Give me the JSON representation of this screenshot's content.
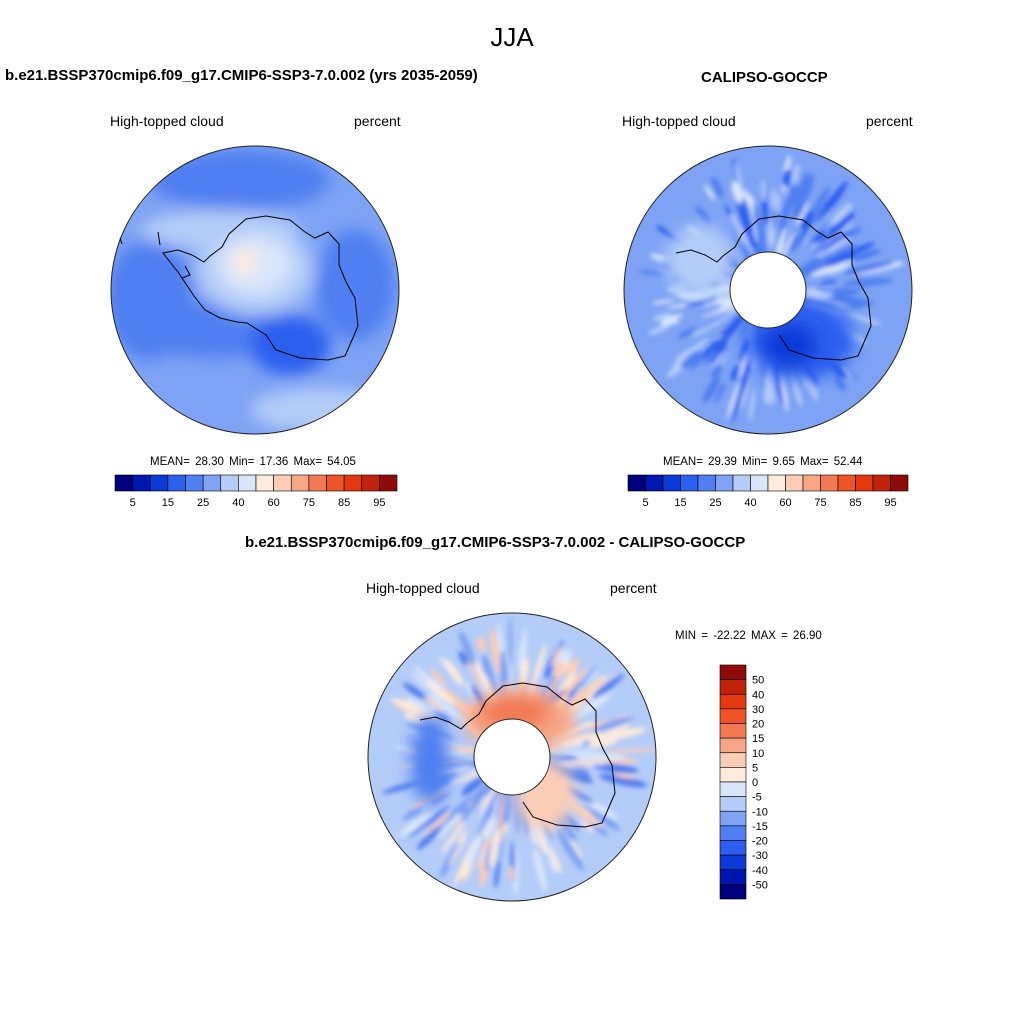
{
  "title": "JJA",
  "panels": {
    "model": {
      "header": "b.e21.BSSP370cmip6.f09_g17.CMIP6-SSP3-7.0.002 (yrs 2035-2059)",
      "variable": "High-topped cloud",
      "units": "percent",
      "stats": "MEAN=  28.30  Min=  17.36  Max=  54.05"
    },
    "obs": {
      "header": "CALIPSO-GOCCP",
      "variable": "High-topped cloud",
      "units": "percent",
      "stats": "MEAN=  29.39  Min=   9.65  Max=  52.44"
    },
    "diff": {
      "header": "b.e21.BSSP370cmip6.f09_g17.CMIP6-SSP3-7.0.002 - CALIPSO-GOCCP",
      "variable": "High-topped cloud",
      "units": "percent",
      "stats": "MIN = -22.22 MAX =  26.90"
    }
  },
  "colorbar_abs": {
    "colors": [
      "#00007f",
      "#0016b0",
      "#0b3ad9",
      "#2b5fef",
      "#4f7ff0",
      "#7ea3f4",
      "#b4ccf8",
      "#d8e6fb",
      "#fdebdc",
      "#fbcdb6",
      "#f6a684",
      "#f27a52",
      "#ef5427",
      "#e4380e",
      "#c1220a",
      "#8e0b07"
    ],
    "labels": [
      "5",
      "15",
      "25",
      "40",
      "60",
      "75",
      "85",
      "95"
    ]
  },
  "colorbar_diff": {
    "colors": [
      "#8e0b07",
      "#c1220a",
      "#e4380e",
      "#ef5427",
      "#f27a52",
      "#f6a684",
      "#fbcdb6",
      "#fdebdc",
      "#d8e6fb",
      "#b4ccf8",
      "#7ea3f4",
      "#4f7ff0",
      "#2b5fef",
      "#0b3ad9",
      "#0016b0",
      "#00007f"
    ],
    "labels": [
      "50",
      "40",
      "30",
      "20",
      "15",
      "10",
      "5",
      "0",
      "-5",
      "-10",
      "-15",
      "-20",
      "-30",
      "-40",
      "-50"
    ]
  }
}
